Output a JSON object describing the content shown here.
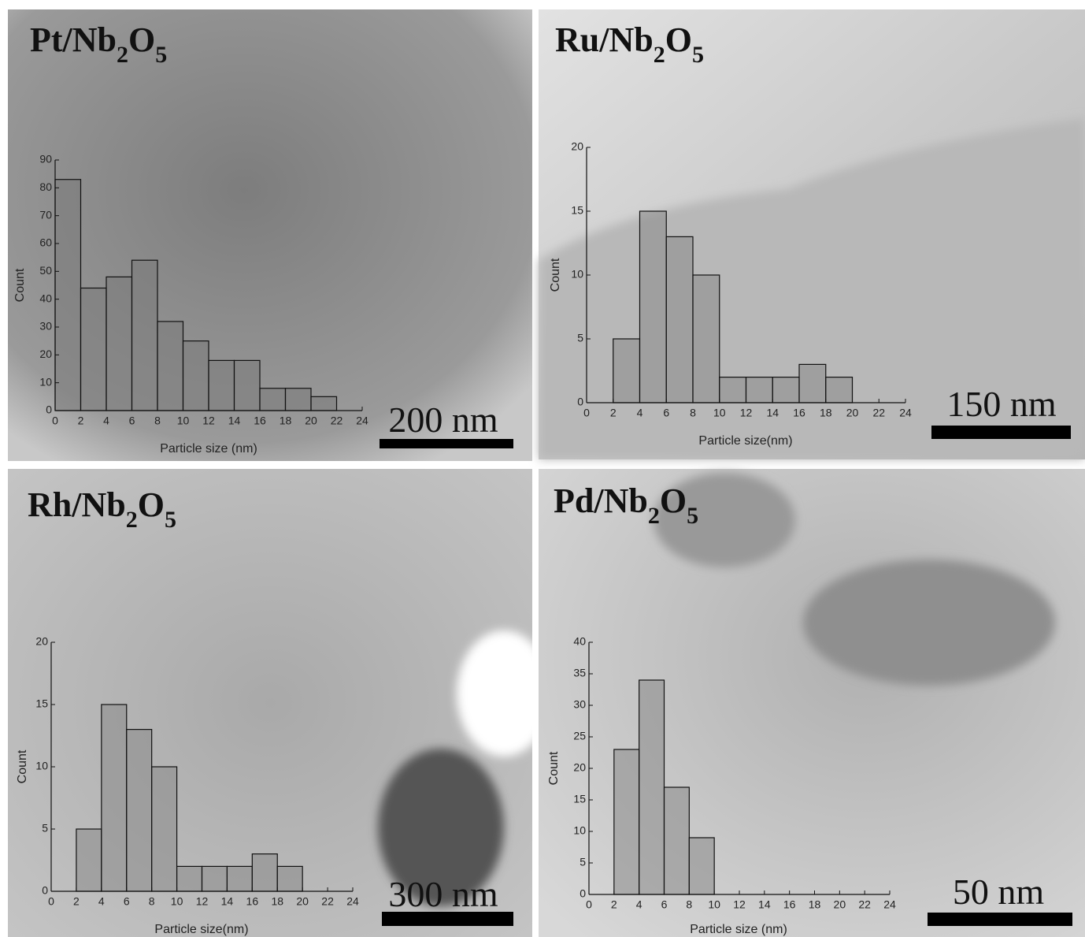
{
  "chart_data": [
    {
      "type": "histogram",
      "title": "Pt/Nb2O5",
      "scale_bar": "200 nm",
      "x_label": "Particle size (nm)",
      "y_label": "Count",
      "color": "#7a7a7a",
      "bins": [
        0,
        2,
        4,
        6,
        8,
        10,
        12,
        14,
        16,
        18,
        20,
        22,
        24
      ],
      "values": [
        83,
        44,
        48,
        54,
        32,
        25,
        18,
        18,
        8,
        8,
        5,
        0
      ],
      "xlim": [
        0,
        24
      ],
      "xticks": [
        0,
        2,
        4,
        6,
        8,
        10,
        12,
        14,
        16,
        18,
        20,
        22,
        24
      ],
      "ylim": [
        0,
        90
      ],
      "yticks": [
        0,
        10,
        20,
        30,
        40,
        50,
        60,
        70,
        80,
        90
      ]
    },
    {
      "type": "histogram",
      "title": "Ru/Nb2O5",
      "scale_bar": "150 nm",
      "x_label": "Particle size(nm)",
      "y_label": "Count",
      "color": "#8a8a8a",
      "bins": [
        0,
        2,
        4,
        6,
        8,
        10,
        12,
        14,
        16,
        18,
        20,
        22,
        24
      ],
      "values": [
        0,
        5,
        15,
        13,
        10,
        2,
        2,
        2,
        3,
        2,
        0,
        0
      ],
      "xlim": [
        0,
        24
      ],
      "xticks": [
        0,
        2,
        4,
        6,
        8,
        10,
        12,
        14,
        16,
        18,
        20,
        22,
        24
      ],
      "ylim": [
        0,
        20
      ],
      "yticks": [
        0,
        5,
        10,
        15,
        20
      ]
    },
    {
      "type": "histogram",
      "title": "Rh/Nb2O5",
      "scale_bar": "300 nm",
      "x_label": "Particle size(nm)",
      "y_label": "Count",
      "color": "#8a8a8a",
      "bins": [
        0,
        2,
        4,
        6,
        8,
        10,
        12,
        14,
        16,
        18,
        20,
        22,
        24
      ],
      "values": [
        0,
        5,
        15,
        13,
        10,
        2,
        2,
        2,
        3,
        2,
        0,
        0
      ],
      "xlim": [
        0,
        24
      ],
      "xticks": [
        0,
        2,
        4,
        6,
        8,
        10,
        12,
        14,
        16,
        18,
        20,
        22,
        24
      ],
      "ylim": [
        0,
        20
      ],
      "yticks": [
        0,
        5,
        10,
        15,
        20
      ]
    },
    {
      "type": "histogram",
      "title": "Pd/Nb2O5",
      "scale_bar": "50 nm",
      "x_label": "Particle size (nm)",
      "y_label": "Count",
      "color": "#8a8a8a",
      "bins": [
        0,
        2,
        4,
        6,
        8,
        10,
        12,
        14,
        16,
        18,
        20,
        22,
        24
      ],
      "values": [
        0,
        23,
        34,
        17,
        9,
        0,
        0,
        0,
        0,
        0,
        0,
        0
      ],
      "xlim": [
        0,
        24
      ],
      "xticks": [
        0,
        2,
        4,
        6,
        8,
        10,
        12,
        14,
        16,
        18,
        20,
        22,
        24
      ],
      "ylim": [
        0,
        40
      ],
      "yticks": [
        0,
        5,
        10,
        15,
        20,
        25,
        30,
        35,
        40
      ]
    }
  ]
}
